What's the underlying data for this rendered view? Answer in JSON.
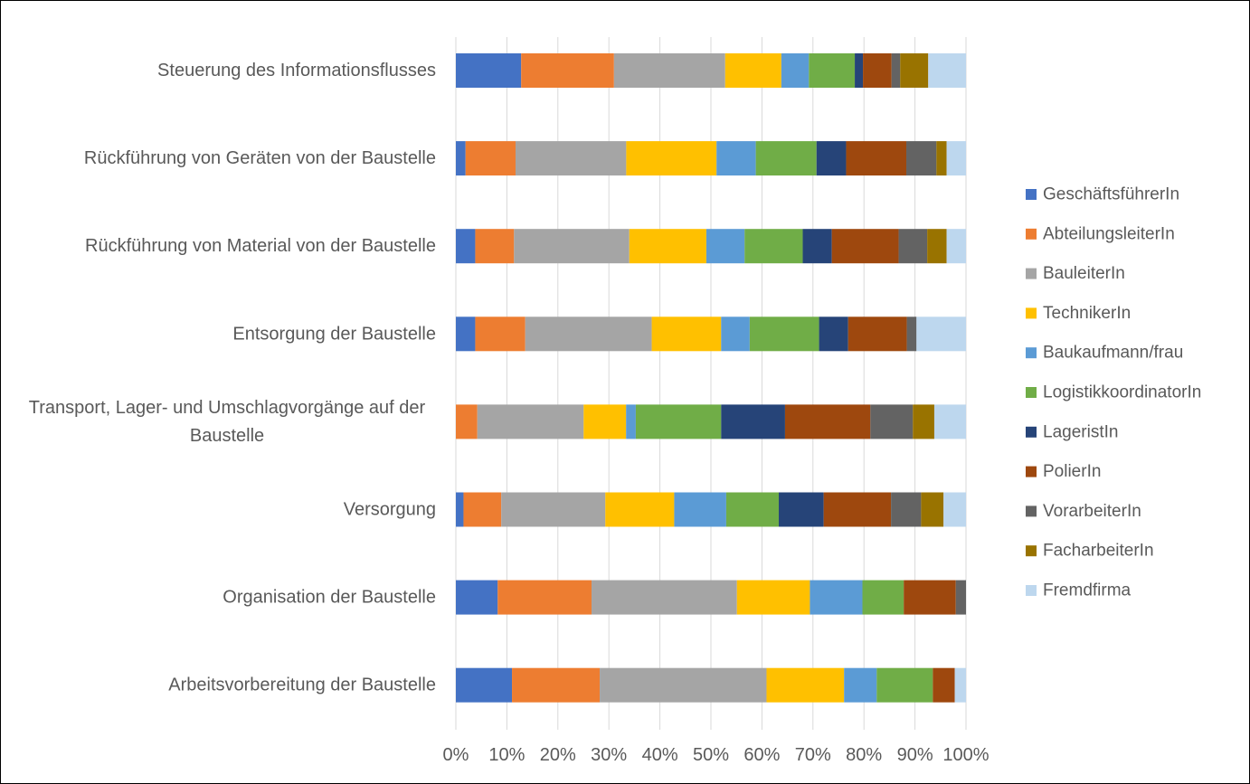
{
  "chart_data": {
    "type": "bar",
    "orientation": "horizontal",
    "stacked": true,
    "normalized": true,
    "title": "",
    "xlabel": "",
    "ylabel": "",
    "xlim": [
      0,
      100
    ],
    "x_ticks": [
      "0%",
      "10%",
      "20%",
      "30%",
      "40%",
      "50%",
      "60%",
      "70%",
      "80%",
      "90%",
      "100%"
    ],
    "grid": "vertical",
    "legend_position": "right",
    "categories": [
      "Steuerung des Informationsflusses",
      "Rückführung von Geräten von der Baustelle",
      "Rückführung von Material von der Baustelle",
      "Entsorgung der Baustelle",
      "Transport, Lager- und Umschlagvorgänge auf der Baustelle",
      "Versorgung",
      "Organisation der Baustelle",
      "Arbeitsvorbereitung der Baustelle"
    ],
    "category_lines": [
      [
        "Steuerung des Informationsflusses"
      ],
      [
        "Rückführung von Geräten von der Baustelle"
      ],
      [
        "Rückführung von Material von der Baustelle"
      ],
      [
        "Entsorgung der Baustelle"
      ],
      [
        "Transport, Lager- und Umschlagvorgänge auf der",
        "Baustelle"
      ],
      [
        "Versorgung"
      ],
      [
        "Organisation der Baustelle"
      ],
      [
        "Arbeitsvorbereitung der Baustelle"
      ]
    ],
    "series": [
      {
        "name": "GeschäftsführerIn",
        "color": "#4472C4",
        "values": [
          12.8,
          1.9,
          3.8,
          3.8,
          0.0,
          1.5,
          8.2,
          11.0
        ]
      },
      {
        "name": "AbteilungsleiterIn",
        "color": "#ED7D31",
        "values": [
          18.2,
          9.8,
          7.6,
          9.8,
          4.2,
          7.4,
          18.4,
          17.2
        ]
      },
      {
        "name": "BauleiterIn",
        "color": "#A5A5A5",
        "values": [
          21.8,
          21.7,
          22.6,
          24.8,
          20.8,
          20.4,
          28.5,
          32.7
        ]
      },
      {
        "name": "TechnikerIn",
        "color": "#FFC000",
        "values": [
          11.0,
          17.7,
          15.1,
          13.6,
          8.3,
          13.5,
          14.3,
          15.2
        ]
      },
      {
        "name": "Baukaufmann/frau",
        "color": "#5B9BD5",
        "values": [
          5.4,
          7.7,
          7.5,
          5.6,
          1.9,
          10.2,
          10.3,
          6.4
        ]
      },
      {
        "name": "LogistikkoordinatorIn",
        "color": "#70AD47",
        "values": [
          9.0,
          11.9,
          11.4,
          13.6,
          16.7,
          10.3,
          8.1,
          11.0
        ]
      },
      {
        "name": "LageristIn",
        "color": "#264478",
        "values": [
          1.6,
          5.8,
          5.7,
          5.7,
          12.5,
          8.8,
          0.0,
          0.0
        ]
      },
      {
        "name": "PolierIn",
        "color": "#9E480E",
        "values": [
          5.6,
          11.8,
          13.1,
          11.5,
          16.7,
          13.2,
          10.2,
          4.3
        ]
      },
      {
        "name": "VorarbeiterIn",
        "color": "#636363",
        "values": [
          1.7,
          5.9,
          5.6,
          1.9,
          8.3,
          5.9,
          2.0,
          0.0
        ]
      },
      {
        "name": "FacharbeiterIn",
        "color": "#997300",
        "values": [
          5.5,
          2.0,
          3.8,
          0.0,
          4.2,
          4.4,
          0.0,
          0.0
        ]
      },
      {
        "name": "Fremdfirma",
        "color": "#BDD7EE",
        "values": [
          7.4,
          3.8,
          3.8,
          9.7,
          6.2,
          4.4,
          0.0,
          2.2
        ]
      }
    ]
  }
}
